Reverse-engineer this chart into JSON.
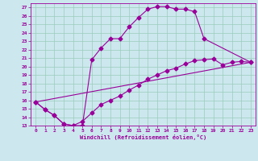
{
  "xlabel": "Windchill (Refroidissement éolien,°C)",
  "xlim": [
    -0.5,
    23.5
  ],
  "ylim": [
    13,
    27.5
  ],
  "xticks": [
    0,
    1,
    2,
    3,
    4,
    5,
    6,
    7,
    8,
    9,
    10,
    11,
    12,
    13,
    14,
    15,
    16,
    17,
    18,
    19,
    20,
    21,
    22,
    23
  ],
  "yticks": [
    13,
    14,
    15,
    16,
    17,
    18,
    19,
    20,
    21,
    22,
    23,
    24,
    25,
    26,
    27
  ],
  "bg_color": "#cce8ee",
  "line_color": "#990099",
  "grid_color": "#99ccbb",
  "curve1_x": [
    0,
    1,
    2,
    3,
    4,
    5,
    6,
    7,
    8,
    9,
    10,
    11,
    12,
    13,
    14,
    15,
    16,
    17,
    18,
    23
  ],
  "curve1_y": [
    15.8,
    14.9,
    14.2,
    13.2,
    13.0,
    13.0,
    20.8,
    22.2,
    23.3,
    23.3,
    24.7,
    25.8,
    26.8,
    27.1,
    27.1,
    26.8,
    26.8,
    26.5,
    23.3,
    20.5
  ],
  "curve2_x": [
    0,
    1,
    2,
    3,
    4,
    5,
    6,
    7,
    8,
    9,
    10,
    11,
    12,
    13,
    14,
    15,
    16,
    17,
    18,
    19,
    20,
    21,
    22,
    23
  ],
  "curve2_y": [
    15.8,
    14.9,
    14.2,
    13.2,
    13.0,
    13.5,
    14.5,
    15.5,
    16.0,
    16.5,
    17.2,
    17.8,
    18.5,
    19.0,
    19.5,
    19.8,
    20.3,
    20.7,
    20.8,
    20.9,
    20.2,
    20.5,
    20.6,
    20.5
  ],
  "line3_x": [
    0,
    23
  ],
  "line3_y": [
    15.8,
    20.5
  ],
  "marker_size": 2.5
}
